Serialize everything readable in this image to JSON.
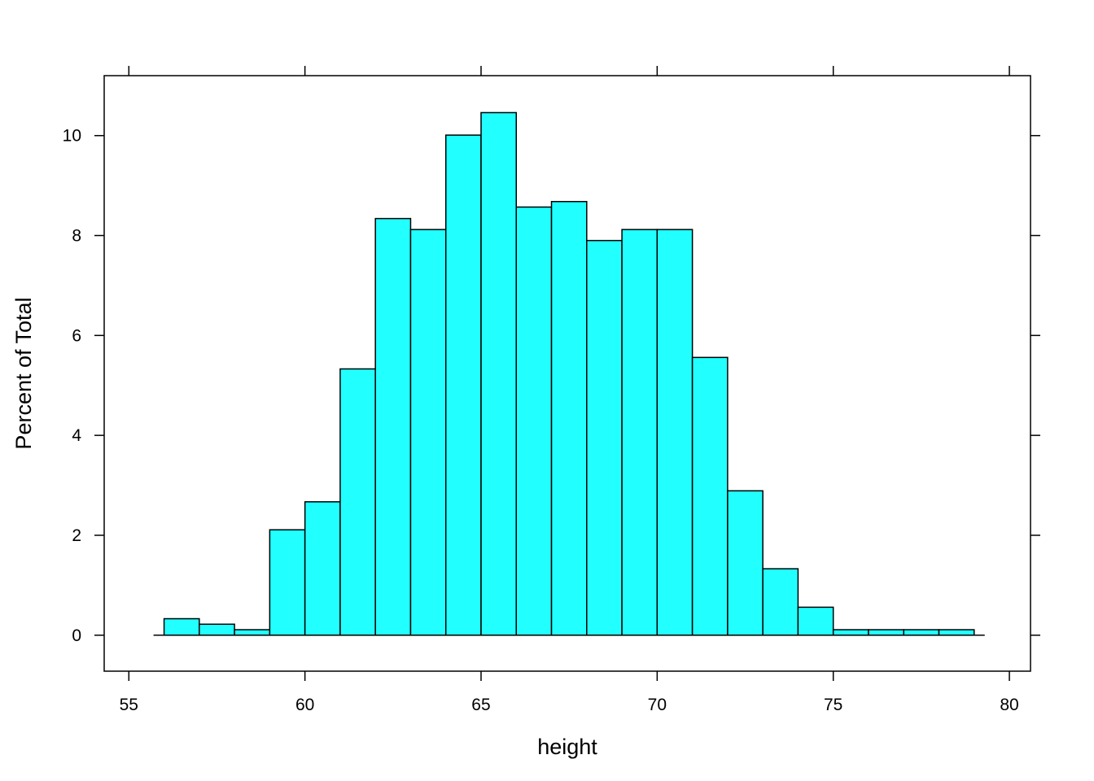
{
  "chart_data": {
    "type": "bar",
    "histogram": true,
    "xlabel": "height",
    "ylabel": "Percent of Total",
    "xlim": [
      54.3,
      80.6
    ],
    "ylim": [
      -0.72,
      11.2
    ],
    "x_ticks": [
      55,
      60,
      65,
      70,
      75,
      80
    ],
    "y_ticks": [
      0,
      2,
      4,
      6,
      8,
      10
    ],
    "bar_color": "#22ffff",
    "bins": [
      {
        "from": 56,
        "to": 57,
        "value": 0.33
      },
      {
        "from": 57,
        "to": 58,
        "value": 0.22
      },
      {
        "from": 58,
        "to": 59,
        "value": 0.11
      },
      {
        "from": 59,
        "to": 60,
        "value": 2.11
      },
      {
        "from": 60,
        "to": 61,
        "value": 2.67
      },
      {
        "from": 61,
        "to": 62,
        "value": 5.33
      },
      {
        "from": 62,
        "to": 63,
        "value": 8.34
      },
      {
        "from": 63,
        "to": 64,
        "value": 8.12
      },
      {
        "from": 64,
        "to": 65,
        "value": 10.01
      },
      {
        "from": 65,
        "to": 66,
        "value": 10.46
      },
      {
        "from": 66,
        "to": 67,
        "value": 8.57
      },
      {
        "from": 67,
        "to": 68,
        "value": 8.68
      },
      {
        "from": 68,
        "to": 69,
        "value": 7.9
      },
      {
        "from": 69,
        "to": 70,
        "value": 8.12
      },
      {
        "from": 70,
        "to": 71,
        "value": 8.12
      },
      {
        "from": 71,
        "to": 72,
        "value": 5.56
      },
      {
        "from": 72,
        "to": 73,
        "value": 2.89
      },
      {
        "from": 73,
        "to": 74,
        "value": 1.33
      },
      {
        "from": 74,
        "to": 75,
        "value": 0.56
      },
      {
        "from": 75,
        "to": 76,
        "value": 0.11
      },
      {
        "from": 76,
        "to": 77,
        "value": 0.11
      },
      {
        "from": 77,
        "to": 78,
        "value": 0.11
      },
      {
        "from": 78,
        "to": 79,
        "value": 0.11
      }
    ],
    "baseline_extent": [
      55.7,
      79.3
    ]
  }
}
